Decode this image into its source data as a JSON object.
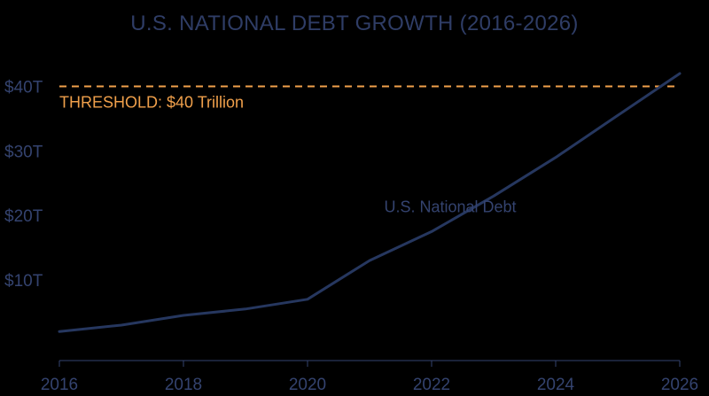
{
  "chart_data": {
    "type": "line",
    "title": "U.S. NATIONAL DEBT GROWTH (2016-2026)",
    "xlabel": "",
    "ylabel": "",
    "x": [
      2016,
      2017,
      2018,
      2019,
      2020,
      2021,
      2022,
      2023,
      2024,
      2025,
      2026
    ],
    "series": [
      {
        "name": "U.S. National Debt",
        "values": [
          2.0,
          3.0,
          4.5,
          5.5,
          7.0,
          13.0,
          17.5,
          23.0,
          29.0,
          35.5,
          42.0
        ],
        "color": "#26375f"
      }
    ],
    "xlim": [
      2016,
      2026
    ],
    "ylim": [
      -2.5,
      42.0
    ],
    "x_ticks": [
      2016,
      2018,
      2020,
      2022,
      2024,
      2026
    ],
    "x_tick_labels": [
      "2016",
      "2018",
      "2020",
      "2022",
      "2024",
      "2026"
    ],
    "y_ticks": [
      10,
      20,
      30,
      40
    ],
    "y_tick_labels": [
      "$10T",
      "$20T",
      "$30T",
      "$40T"
    ],
    "threshold": {
      "value": 40,
      "label": "THRESHOLD: $40 Trillion",
      "color": "#f0a04b",
      "style": "dashed"
    },
    "grid": false,
    "legend": "none",
    "colors": {
      "background": "#000000",
      "text": "#34436f",
      "axis": "#34436f"
    }
  }
}
